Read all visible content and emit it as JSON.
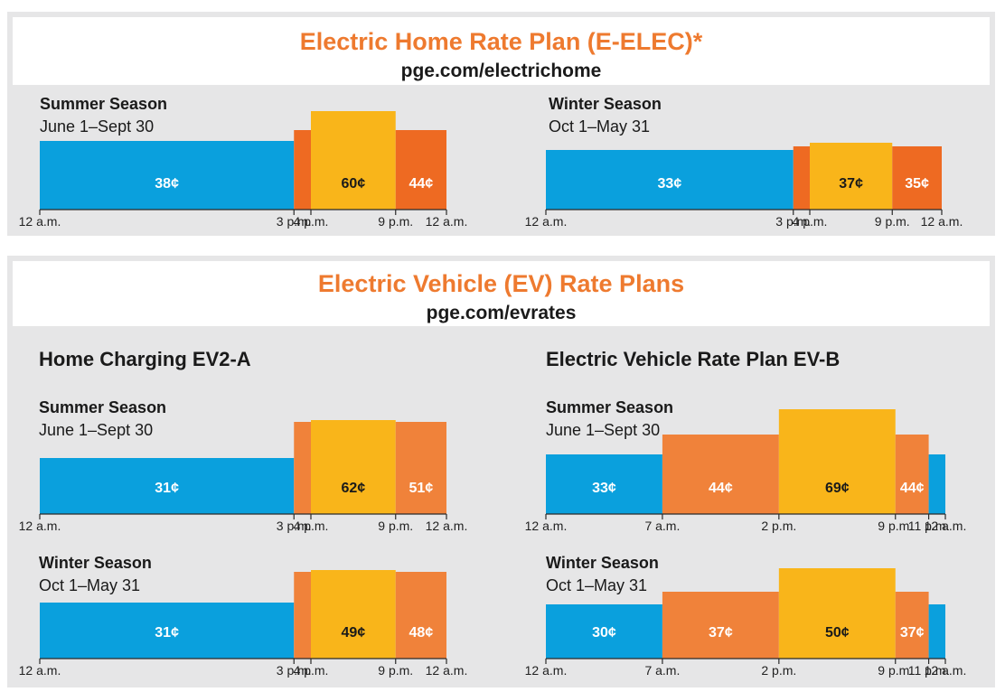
{
  "colors": {
    "off_peak": "#0aa0dd",
    "part_peak_a": "#ee6a22",
    "part_peak_b": "#f0823a",
    "peak": "#f9b51a",
    "accent_title": "#ee7a2f"
  },
  "eelec": {
    "title": "Electric Home Rate Plan (E-ELEC)*",
    "url": "pge.com/electrichome"
  },
  "ev": {
    "title": "Electric Vehicle (EV) Rate Plans",
    "url": "pge.com/evrates"
  },
  "ev2a": {
    "name": "Home Charging EV2-A"
  },
  "evb": {
    "name": "Electric Vehicle Rate Plan EV-B"
  },
  "chart_data": [
    {
      "type": "bar",
      "plan": "E-ELEC",
      "season": "Summer Season",
      "dates": "June 1–Sept 30",
      "unit": "¢",
      "ticks": [
        {
          "hour": 0,
          "label": "12 a.m."
        },
        {
          "hour": 15,
          "label": "3 p.m."
        },
        {
          "hour": 16,
          "label": "4 p.m."
        },
        {
          "hour": 21,
          "label": "9 p.m."
        },
        {
          "hour": 24,
          "label": "12 a.m."
        }
      ],
      "segments": [
        {
          "start": 0,
          "end": 15,
          "value": 38,
          "label": "38¢",
          "color": "off_peak"
        },
        {
          "start": 15,
          "end": 16,
          "value": 44,
          "label": "",
          "color": "part_peak_a"
        },
        {
          "start": 16,
          "end": 21,
          "value": 60,
          "label": "60¢",
          "color": "peak"
        },
        {
          "start": 21,
          "end": 24,
          "value": 44,
          "label": "44¢",
          "color": "part_peak_a"
        }
      ]
    },
    {
      "type": "bar",
      "plan": "E-ELEC",
      "season": "Winter Season",
      "dates": "Oct 1–May 31",
      "unit": "¢",
      "ticks": [
        {
          "hour": 0,
          "label": "12 a.m."
        },
        {
          "hour": 15,
          "label": "3 p.m."
        },
        {
          "hour": 16,
          "label": "4 p.m."
        },
        {
          "hour": 21,
          "label": "9 p.m."
        },
        {
          "hour": 24,
          "label": "12 a.m."
        }
      ],
      "segments": [
        {
          "start": 0,
          "end": 15,
          "value": 33,
          "label": "33¢",
          "color": "off_peak"
        },
        {
          "start": 15,
          "end": 16,
          "value": 35,
          "label": "",
          "color": "part_peak_a"
        },
        {
          "start": 16,
          "end": 21,
          "value": 37,
          "label": "37¢",
          "color": "peak"
        },
        {
          "start": 21,
          "end": 24,
          "value": 35,
          "label": "35¢",
          "color": "part_peak_a"
        }
      ]
    },
    {
      "type": "bar",
      "plan": "EV2-A",
      "season": "Summer Season",
      "dates": "June 1–Sept 30",
      "unit": "¢",
      "ticks": [
        {
          "hour": 0,
          "label": "12 a.m."
        },
        {
          "hour": 15,
          "label": "3 p.m."
        },
        {
          "hour": 16,
          "label": "4 p.m."
        },
        {
          "hour": 21,
          "label": "9 p.m."
        },
        {
          "hour": 24,
          "label": "12 a.m."
        }
      ],
      "segments": [
        {
          "start": 0,
          "end": 15,
          "value": 31,
          "label": "31¢",
          "color": "off_peak"
        },
        {
          "start": 15,
          "end": 16,
          "value": 51,
          "label": "",
          "color": "part_peak_b"
        },
        {
          "start": 16,
          "end": 21,
          "value": 62,
          "label": "62¢",
          "color": "peak"
        },
        {
          "start": 21,
          "end": 24,
          "value": 51,
          "label": "51¢",
          "color": "part_peak_b"
        }
      ]
    },
    {
      "type": "bar",
      "plan": "EV2-A",
      "season": "Winter Season",
      "dates": "Oct 1–May 31",
      "unit": "¢",
      "ticks": [
        {
          "hour": 0,
          "label": "12 a.m."
        },
        {
          "hour": 15,
          "label": "3 p.m."
        },
        {
          "hour": 16,
          "label": "4 p.m."
        },
        {
          "hour": 21,
          "label": "9 p.m."
        },
        {
          "hour": 24,
          "label": "12 a.m."
        }
      ],
      "segments": [
        {
          "start": 0,
          "end": 15,
          "value": 31,
          "label": "31¢",
          "color": "off_peak"
        },
        {
          "start": 15,
          "end": 16,
          "value": 48,
          "label": "",
          "color": "part_peak_b"
        },
        {
          "start": 16,
          "end": 21,
          "value": 49,
          "label": "49¢",
          "color": "peak"
        },
        {
          "start": 21,
          "end": 24,
          "value": 48,
          "label": "48¢",
          "color": "part_peak_b"
        }
      ]
    },
    {
      "type": "bar",
      "plan": "EV-B",
      "season": "Summer Season",
      "dates": "June 1–Sept 30",
      "unit": "¢",
      "ticks": [
        {
          "hour": 0,
          "label": "12 a.m."
        },
        {
          "hour": 7,
          "label": "7 a.m."
        },
        {
          "hour": 14,
          "label": "2 p.m."
        },
        {
          "hour": 21,
          "label": "9 p.m."
        },
        {
          "hour": 23,
          "label": "11 p.m."
        },
        {
          "hour": 24,
          "label": "12 a.m."
        }
      ],
      "segments": [
        {
          "start": 0,
          "end": 7,
          "value": 33,
          "label": "33¢",
          "color": "off_peak"
        },
        {
          "start": 7,
          "end": 14,
          "value": 44,
          "label": "44¢",
          "color": "part_peak_b"
        },
        {
          "start": 14,
          "end": 21,
          "value": 69,
          "label": "69¢",
          "color": "peak"
        },
        {
          "start": 21,
          "end": 23,
          "value": 44,
          "label": "44¢",
          "color": "part_peak_b"
        },
        {
          "start": 23,
          "end": 24,
          "value": 33,
          "label": "",
          "color": "off_peak"
        }
      ]
    },
    {
      "type": "bar",
      "plan": "EV-B",
      "season": "Winter Season",
      "dates": "Oct 1–May 31",
      "unit": "¢",
      "ticks": [
        {
          "hour": 0,
          "label": "12 a.m."
        },
        {
          "hour": 7,
          "label": "7 a.m."
        },
        {
          "hour": 14,
          "label": "2 p.m."
        },
        {
          "hour": 21,
          "label": "9 p.m."
        },
        {
          "hour": 23,
          "label": "11 p.m."
        },
        {
          "hour": 24,
          "label": "12 a.m."
        }
      ],
      "segments": [
        {
          "start": 0,
          "end": 7,
          "value": 30,
          "label": "30¢",
          "color": "off_peak"
        },
        {
          "start": 7,
          "end": 14,
          "value": 37,
          "label": "37¢",
          "color": "part_peak_b"
        },
        {
          "start": 14,
          "end": 21,
          "value": 50,
          "label": "50¢",
          "color": "peak"
        },
        {
          "start": 21,
          "end": 23,
          "value": 37,
          "label": "37¢",
          "color": "part_peak_b"
        },
        {
          "start": 23,
          "end": 24,
          "value": 30,
          "label": "",
          "color": "off_peak"
        }
      ]
    }
  ]
}
